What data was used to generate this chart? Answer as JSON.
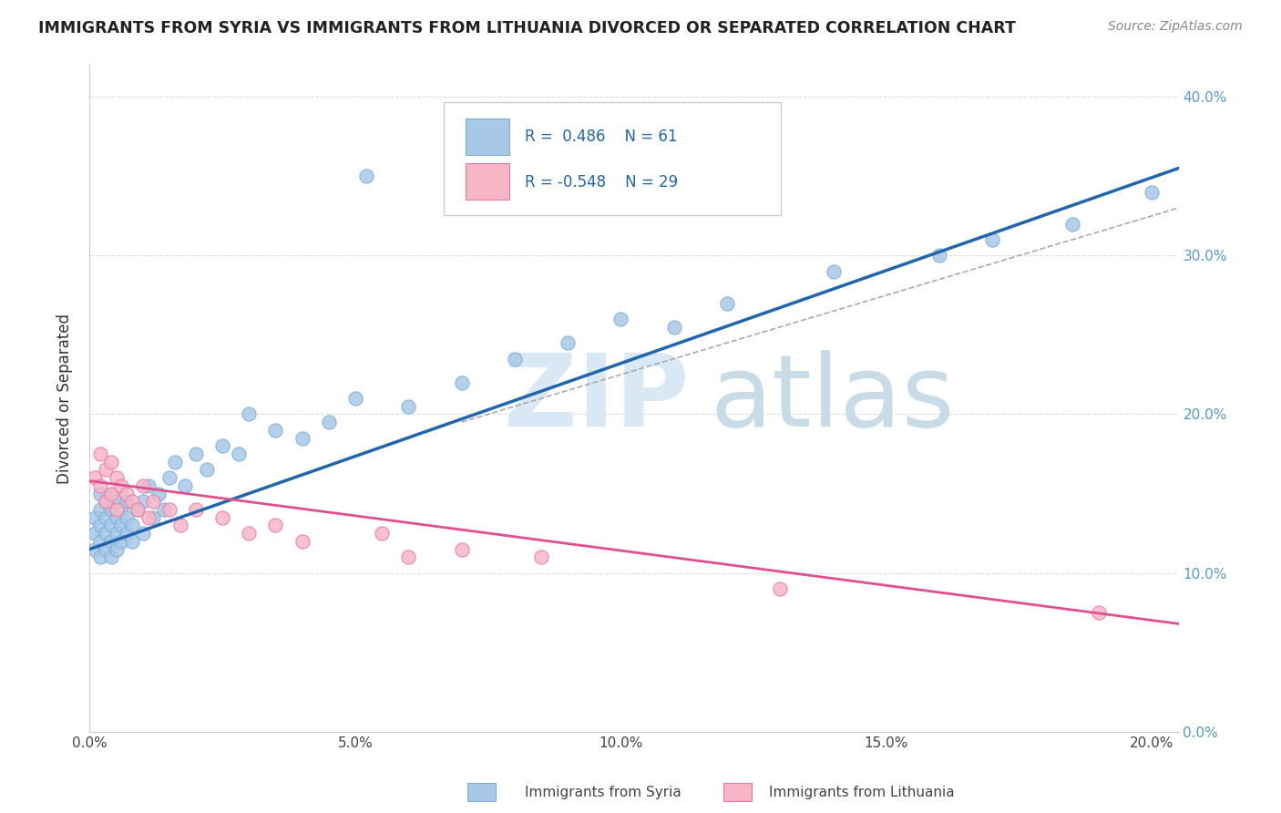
{
  "title": "IMMIGRANTS FROM SYRIA VS IMMIGRANTS FROM LITHUANIA DIVORCED OR SEPARATED CORRELATION CHART",
  "source": "Source: ZipAtlas.com",
  "ylabel": "Divorced or Separated",
  "legend_label1": "Immigrants from Syria",
  "legend_label2": "Immigrants from Lithuania",
  "r1": 0.486,
  "n1": 61,
  "r2": -0.548,
  "n2": 29,
  "color1_fill": "#a8c8e8",
  "color1_edge": "#7aafd4",
  "color2_fill": "#f7b6c8",
  "color2_edge": "#e879a0",
  "line_color1": "#2166ac",
  "line_color2": "#e05090",
  "xlim": [
    0.0,
    0.205
  ],
  "ylim": [
    0.0,
    0.42
  ],
  "x_ticks": [
    0.0,
    0.05,
    0.1,
    0.15,
    0.2
  ],
  "x_tick_labels": [
    "0.0%",
    "5.0%",
    "10.0%",
    "15.0%",
    "20.0%"
  ],
  "y_ticks": [
    0.0,
    0.1,
    0.2,
    0.3,
    0.4
  ],
  "y_tick_labels": [
    "0.0%",
    "10.0%",
    "20.0%",
    "30.0%",
    "40.0%"
  ],
  "background_color": "#ffffff",
  "grid_color": "#dddddd",
  "right_tick_color": "#5599cc",
  "syria_x": [
    0.001,
    0.001,
    0.001,
    0.002,
    0.002,
    0.002,
    0.002,
    0.002,
    0.003,
    0.003,
    0.003,
    0.003,
    0.004,
    0.004,
    0.004,
    0.004,
    0.004,
    0.005,
    0.005,
    0.005,
    0.005,
    0.006,
    0.006,
    0.006,
    0.007,
    0.007,
    0.007,
    0.008,
    0.008,
    0.009,
    0.01,
    0.01,
    0.011,
    0.012,
    0.013,
    0.014,
    0.015,
    0.016,
    0.018,
    0.02,
    0.022,
    0.025,
    0.028,
    0.03,
    0.035,
    0.04,
    0.045,
    0.05,
    0.052,
    0.06,
    0.07,
    0.08,
    0.09,
    0.1,
    0.11,
    0.12,
    0.14,
    0.16,
    0.17,
    0.185,
    0.2
  ],
  "syria_y": [
    0.135,
    0.115,
    0.125,
    0.14,
    0.12,
    0.13,
    0.15,
    0.11,
    0.125,
    0.145,
    0.115,
    0.135,
    0.12,
    0.14,
    0.13,
    0.15,
    0.11,
    0.135,
    0.125,
    0.115,
    0.145,
    0.13,
    0.14,
    0.12,
    0.145,
    0.125,
    0.135,
    0.13,
    0.12,
    0.14,
    0.145,
    0.125,
    0.155,
    0.135,
    0.15,
    0.14,
    0.16,
    0.17,
    0.155,
    0.175,
    0.165,
    0.18,
    0.175,
    0.2,
    0.19,
    0.185,
    0.195,
    0.21,
    0.35,
    0.205,
    0.22,
    0.235,
    0.245,
    0.26,
    0.255,
    0.27,
    0.29,
    0.3,
    0.31,
    0.32,
    0.34
  ],
  "lithuania_x": [
    0.001,
    0.002,
    0.002,
    0.003,
    0.003,
    0.004,
    0.004,
    0.005,
    0.005,
    0.006,
    0.007,
    0.008,
    0.009,
    0.01,
    0.011,
    0.012,
    0.015,
    0.017,
    0.02,
    0.025,
    0.03,
    0.035,
    0.04,
    0.055,
    0.06,
    0.07,
    0.085,
    0.13,
    0.19
  ],
  "lithuania_y": [
    0.16,
    0.175,
    0.155,
    0.165,
    0.145,
    0.17,
    0.15,
    0.16,
    0.14,
    0.155,
    0.15,
    0.145,
    0.14,
    0.155,
    0.135,
    0.145,
    0.14,
    0.13,
    0.14,
    0.135,
    0.125,
    0.13,
    0.12,
    0.125,
    0.11,
    0.115,
    0.11,
    0.09,
    0.075
  ],
  "blue_line_x0": 0.0,
  "blue_line_y0": 0.115,
  "blue_line_x1": 0.205,
  "blue_line_y1": 0.355,
  "pink_line_x0": 0.0,
  "pink_line_y0": 0.158,
  "pink_line_x1": 0.205,
  "pink_line_y1": 0.068,
  "gray_line_x0": 0.07,
  "gray_line_y0": 0.195,
  "gray_line_x1": 0.205,
  "gray_line_y1": 0.33
}
